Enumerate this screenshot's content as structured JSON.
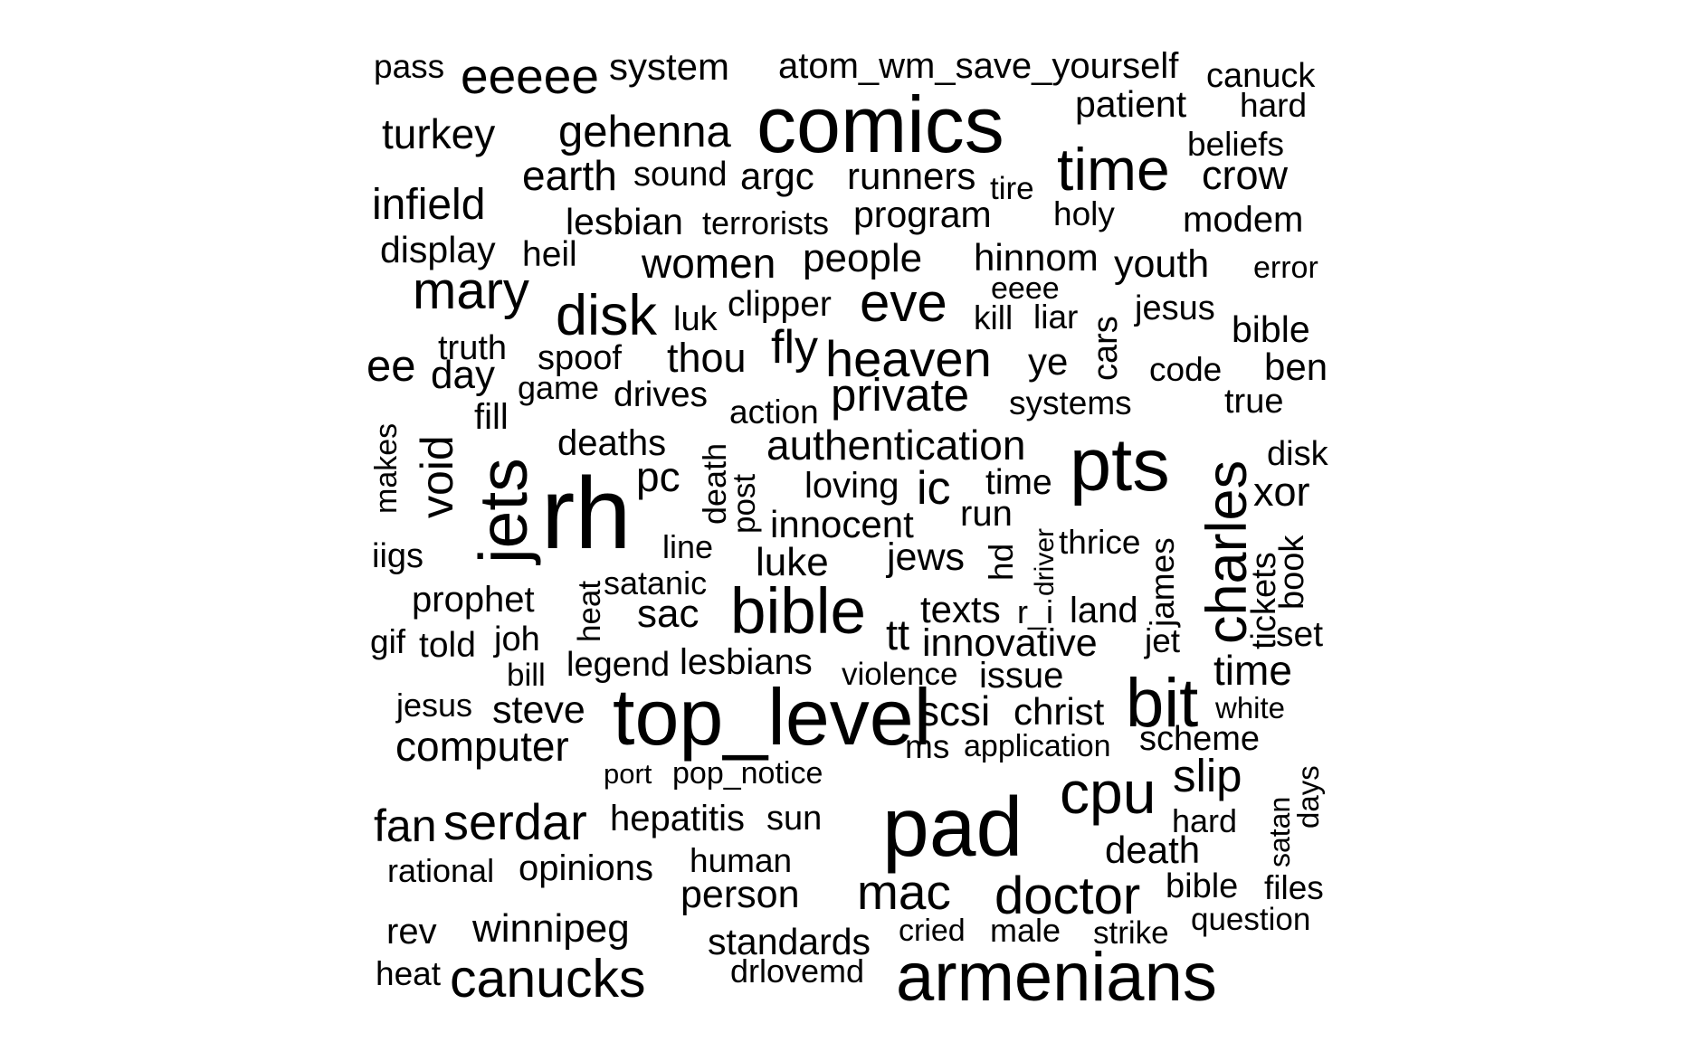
{
  "chart_data": {
    "type": "wordcloud",
    "words": [
      {
        "text": "pass",
        "weight": 1
      },
      {
        "text": "eeeee",
        "weight": 3
      },
      {
        "text": "system",
        "weight": 2
      },
      {
        "text": "atom_wm_save_yourself",
        "weight": 2
      },
      {
        "text": "canuck",
        "weight": 2
      },
      {
        "text": "comics",
        "weight": 6
      },
      {
        "text": "patient",
        "weight": 2
      },
      {
        "text": "hard",
        "weight": 2
      },
      {
        "text": "turkey",
        "weight": 3
      },
      {
        "text": "gehenna",
        "weight": 3
      },
      {
        "text": "time",
        "weight": 4
      },
      {
        "text": "beliefs",
        "weight": 2
      },
      {
        "text": "earth",
        "weight": 3
      },
      {
        "text": "sound",
        "weight": 2
      },
      {
        "text": "argc",
        "weight": 2
      },
      {
        "text": "runners",
        "weight": 2
      },
      {
        "text": "tire",
        "weight": 1
      },
      {
        "text": "crow",
        "weight": 3
      },
      {
        "text": "infield",
        "weight": 3
      },
      {
        "text": "lesbian",
        "weight": 2
      },
      {
        "text": "terrorists",
        "weight": 2
      },
      {
        "text": "program",
        "weight": 2
      },
      {
        "text": "holy",
        "weight": 2
      },
      {
        "text": "modem",
        "weight": 2
      },
      {
        "text": "display",
        "weight": 2
      },
      {
        "text": "heil",
        "weight": 2
      },
      {
        "text": "women",
        "weight": 3
      },
      {
        "text": "people",
        "weight": 3
      },
      {
        "text": "hinnom",
        "weight": 3
      },
      {
        "text": "youth",
        "weight": 3
      },
      {
        "text": "error",
        "weight": 1
      },
      {
        "text": "mary",
        "weight": 4
      },
      {
        "text": "eeee",
        "weight": 1
      },
      {
        "text": "disk",
        "weight": 4
      },
      {
        "text": "luk",
        "weight": 2
      },
      {
        "text": "clipper",
        "weight": 2
      },
      {
        "text": "eve",
        "weight": 4
      },
      {
        "text": "kill",
        "weight": 2
      },
      {
        "text": "liar",
        "weight": 2
      },
      {
        "text": "cars",
        "weight": 2
      },
      {
        "text": "jesus",
        "weight": 2
      },
      {
        "text": "bible",
        "weight": 3
      },
      {
        "text": "truth",
        "weight": 2
      },
      {
        "text": "spoof",
        "weight": 2
      },
      {
        "text": "thou",
        "weight": 3
      },
      {
        "text": "fly",
        "weight": 3
      },
      {
        "text": "heaven",
        "weight": 4
      },
      {
        "text": "ye",
        "weight": 3
      },
      {
        "text": "code",
        "weight": 2
      },
      {
        "text": "ben",
        "weight": 3
      },
      {
        "text": "ee",
        "weight": 3
      },
      {
        "text": "day",
        "weight": 3
      },
      {
        "text": "game",
        "weight": 2
      },
      {
        "text": "drives",
        "weight": 2
      },
      {
        "text": "private",
        "weight": 4
      },
      {
        "text": "systems",
        "weight": 2
      },
      {
        "text": "true",
        "weight": 2
      },
      {
        "text": "makes",
        "weight": 1
      },
      {
        "text": "void",
        "weight": 4
      },
      {
        "text": "fill",
        "weight": 2
      },
      {
        "text": "action",
        "weight": 2
      },
      {
        "text": "jets",
        "weight": 5
      },
      {
        "text": "deaths",
        "weight": 3
      },
      {
        "text": "death",
        "weight": 1
      },
      {
        "text": "authentication",
        "weight": 3
      },
      {
        "text": "pts",
        "weight": 6
      },
      {
        "text": "charles",
        "weight": 5
      },
      {
        "text": "disk",
        "weight": 2
      },
      {
        "text": "rh",
        "weight": 6
      },
      {
        "text": "pc",
        "weight": 3
      },
      {
        "text": "post",
        "weight": 2
      },
      {
        "text": "loving",
        "weight": 3
      },
      {
        "text": "ic",
        "weight": 3
      },
      {
        "text": "time",
        "weight": 3
      },
      {
        "text": "xor",
        "weight": 3
      },
      {
        "text": "run",
        "weight": 3
      },
      {
        "text": "innocent",
        "weight": 3
      },
      {
        "text": "hd",
        "weight": 3
      },
      {
        "text": "driver",
        "weight": 1
      },
      {
        "text": "iigs",
        "weight": 2
      },
      {
        "text": "line",
        "weight": 2
      },
      {
        "text": "thrice",
        "weight": 2
      },
      {
        "text": "luke",
        "weight": 3
      },
      {
        "text": "jews",
        "weight": 3
      },
      {
        "text": "book",
        "weight": 2
      },
      {
        "text": "satanic",
        "weight": 2
      },
      {
        "text": "james",
        "weight": 2
      },
      {
        "text": "prophet",
        "weight": 3
      },
      {
        "text": "heat",
        "weight": 2
      },
      {
        "text": "bible",
        "weight": 5
      },
      {
        "text": "texts",
        "weight": 3
      },
      {
        "text": "land",
        "weight": 3
      },
      {
        "text": "sac",
        "weight": 3
      },
      {
        "text": "r_i",
        "weight": 2
      },
      {
        "text": "tickets",
        "weight": 2
      },
      {
        "text": "set",
        "weight": 3
      },
      {
        "text": "gif",
        "weight": 2
      },
      {
        "text": "told",
        "weight": 3
      },
      {
        "text": "joh",
        "weight": 2
      },
      {
        "text": "tt",
        "weight": 3
      },
      {
        "text": "innovative",
        "weight": 3
      },
      {
        "text": "jet",
        "weight": 2
      },
      {
        "text": "bill",
        "weight": 2
      },
      {
        "text": "legend",
        "weight": 2
      },
      {
        "text": "lesbians",
        "weight": 3
      },
      {
        "text": "violence",
        "weight": 2
      },
      {
        "text": "issue",
        "weight": 3
      },
      {
        "text": "time",
        "weight": 3
      },
      {
        "text": "bit",
        "weight": 5
      },
      {
        "text": "jesus",
        "weight": 2
      },
      {
        "text": "steve",
        "weight": 3
      },
      {
        "text": "top_level",
        "weight": 6
      },
      {
        "text": "scsi",
        "weight": 4
      },
      {
        "text": "christ",
        "weight": 3
      },
      {
        "text": "white",
        "weight": 2
      },
      {
        "text": "ms",
        "weight": 3
      },
      {
        "text": "application",
        "weight": 2
      },
      {
        "text": "scheme",
        "weight": 3
      },
      {
        "text": "computer",
        "weight": 3
      },
      {
        "text": "days",
        "weight": 2
      },
      {
        "text": "port",
        "weight": 2
      },
      {
        "text": "pop_notice",
        "weight": 2
      },
      {
        "text": "slip",
        "weight": 3
      },
      {
        "text": "pad",
        "weight": 6
      },
      {
        "text": "cpu",
        "weight": 4
      },
      {
        "text": "satan",
        "weight": 2
      },
      {
        "text": "fan",
        "weight": 3
      },
      {
        "text": "serdar",
        "weight": 4
      },
      {
        "text": "hepatitis",
        "weight": 3
      },
      {
        "text": "sun",
        "weight": 2
      },
      {
        "text": "hard",
        "weight": 2
      },
      {
        "text": "death",
        "weight": 3
      },
      {
        "text": "rational",
        "weight": 2
      },
      {
        "text": "opinions",
        "weight": 3
      },
      {
        "text": "human",
        "weight": 2
      },
      {
        "text": "mac",
        "weight": 5
      },
      {
        "text": "doctor",
        "weight": 4
      },
      {
        "text": "bible",
        "weight": 3
      },
      {
        "text": "files",
        "weight": 2
      },
      {
        "text": "person",
        "weight": 3
      },
      {
        "text": "rev",
        "weight": 3
      },
      {
        "text": "winnipeg",
        "weight": 3
      },
      {
        "text": "standards",
        "weight": 3
      },
      {
        "text": "cried",
        "weight": 2
      },
      {
        "text": "male",
        "weight": 2
      },
      {
        "text": "strike",
        "weight": 2
      },
      {
        "text": "question",
        "weight": 2
      },
      {
        "text": "heat",
        "weight": 2
      },
      {
        "text": "canucks",
        "weight": 5
      },
      {
        "text": "drlovemd",
        "weight": 2
      },
      {
        "text": "armenians",
        "weight": 6
      }
    ]
  }
}
